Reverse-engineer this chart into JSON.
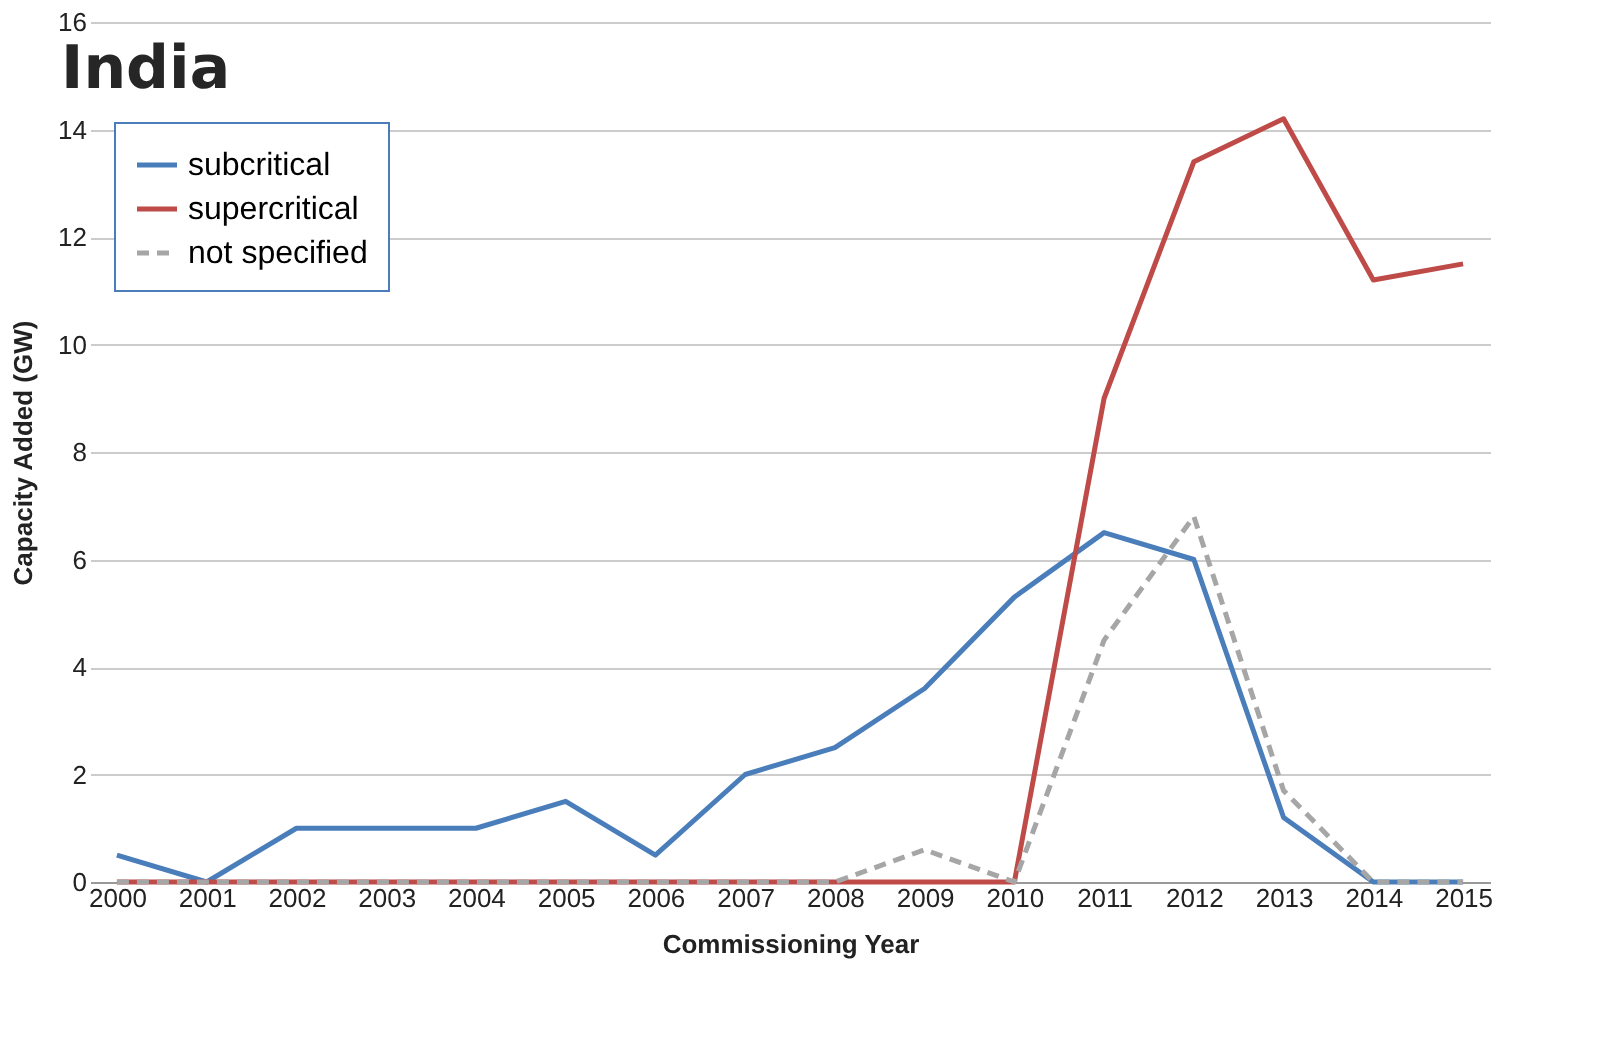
{
  "chart_data": {
    "type": "line",
    "title": "India",
    "xlabel": "Commissioning Year",
    "ylabel": "Capacity Added (GW)",
    "categories": [
      "2000",
      "2001",
      "2002",
      "2003",
      "2004",
      "2005",
      "2006",
      "2007",
      "2008",
      "2009",
      "2010",
      "2011",
      "2012",
      "2013",
      "2014",
      "2015"
    ],
    "series": [
      {
        "name": "subcritical",
        "color": "#4a7ebb",
        "line_style": "solid",
        "values": [
          0.5,
          0,
          1,
          1,
          1,
          1.5,
          0.5,
          2,
          2.5,
          3.6,
          5.3,
          6.5,
          6.0,
          1.2,
          0,
          0
        ]
      },
      {
        "name": "supercritical",
        "color": "#be4b48",
        "line_style": "solid",
        "values": [
          0,
          0,
          0,
          0,
          0,
          0,
          0,
          0,
          0,
          0,
          0,
          9.0,
          13.4,
          14.2,
          11.2,
          11.5
        ]
      },
      {
        "name": "not specified",
        "color": "#a6a6a6",
        "line_style": "dashed",
        "values": [
          0,
          0,
          0,
          0,
          0,
          0,
          0,
          0,
          0,
          0.6,
          0,
          4.5,
          6.8,
          1.7,
          0,
          0
        ]
      }
    ],
    "ylim": [
      0,
      16
    ],
    "yticks": [
      0,
      2,
      4,
      6,
      8,
      10,
      12,
      14,
      16
    ],
    "grid": "y",
    "legend": "top left",
    "marker": "none"
  }
}
